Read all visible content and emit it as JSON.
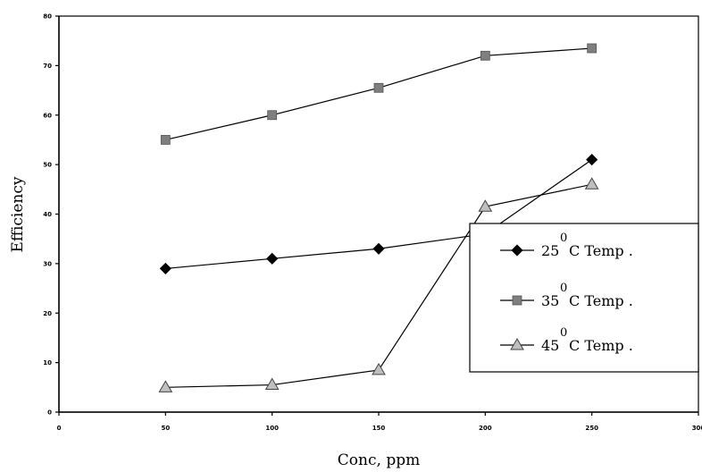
{
  "chart_data": {
    "type": "line",
    "title": "",
    "xlabel": "Conc, ppm",
    "ylabel": "Efficiency",
    "xlim": [
      0,
      300
    ],
    "ylim": [
      0,
      80
    ],
    "xticks": [
      "0",
      "50",
      "100",
      "150",
      "200",
      "250",
      "300"
    ],
    "yticks": [
      "0",
      "10",
      "20",
      "30",
      "40",
      "50",
      "60",
      "70",
      "80"
    ],
    "grid": false,
    "legend_position": "right",
    "x": [
      50,
      100,
      150,
      200,
      250
    ],
    "series": [
      {
        "name": "25",
        "sup": "0",
        "suffix": "C Temp .",
        "marker": "diamond",
        "color": "#000000",
        "values": [
          29,
          31,
          33,
          36,
          51
        ]
      },
      {
        "name": "35",
        "sup": "0",
        "suffix": "C Temp .",
        "marker": "square",
        "color": "#7f7f7f",
        "values": [
          55,
          60,
          65.5,
          72,
          73.5
        ]
      },
      {
        "name": "45",
        "sup": "0",
        "suffix": "C Temp .",
        "marker": "triangle",
        "color": "#bfbfbf",
        "values": [
          5,
          5.5,
          8.5,
          41.5,
          46
        ]
      }
    ]
  }
}
